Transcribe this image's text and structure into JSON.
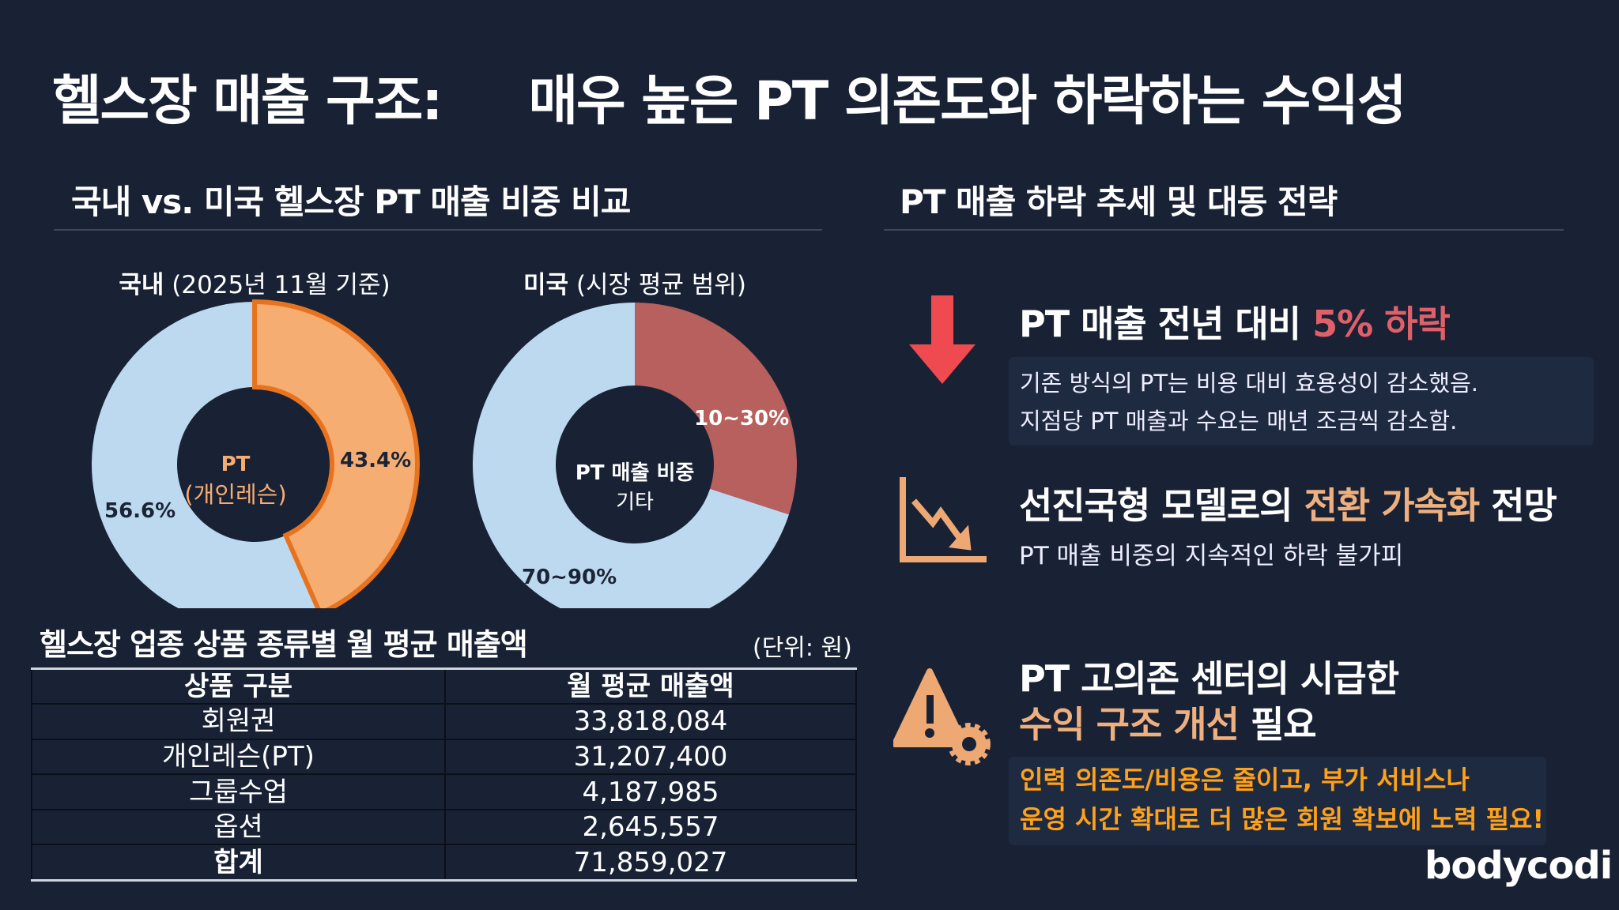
{
  "title": {
    "part1": "헬스장 매출 구조:",
    "part2": "매우 높은 PT 의존도와 하락하는 수익성"
  },
  "left": {
    "heading": "국내 vs. 미국 헬스장 PT 매출 비중 비교",
    "domestic": {
      "label_bold": "국내",
      "label_rest": "(2025년 11월 기준)",
      "center_line1": "PT",
      "center_line2": "(개인레슨)",
      "pt_value": "43.4%",
      "other_value": "56.6%"
    },
    "us": {
      "label_bold": "미국",
      "label_rest": "(시장 평균 범위)",
      "center_line1": "PT 매출 비중",
      "center_line2": "기타",
      "pt_value": "10~30%",
      "other_value": "70~90%"
    },
    "table": {
      "title": "헬스장 업종 상품 종류별 월 평균 매출액",
      "unit": "(단위: 원)",
      "headers": [
        "상품 구분",
        "월 평균 매출액"
      ],
      "rows": [
        [
          "회원권",
          "33,818,084"
        ],
        [
          "개인레슨(PT)",
          "31,207,400"
        ],
        [
          "그룹수업",
          "4,187,985"
        ],
        [
          "옵션",
          "2,645,557"
        ],
        [
          "합계",
          "71,859,027"
        ]
      ]
    }
  },
  "right": {
    "heading": "PT 매출 하락 추세 및 대동 전략",
    "item1": {
      "icon": "down-arrow-icon",
      "title_pre": "PT 매출 전년 대비 ",
      "title_hl": "5% 하락",
      "line1": "기존 방식의 PT는 비용 대비 효용성이 감소했음.",
      "line2": "지점당 PT 매출과 수요는 매년 조금씩 감소함."
    },
    "item2": {
      "icon": "declining-chart-icon",
      "title_pre": "선진국형 모델로의 ",
      "title_hl": "전환 가속화",
      "title_post": " 전망",
      "sub": "PT 매출 비중의 지속적인 하락 불가피"
    },
    "item3": {
      "icon": "warning-gear-icon",
      "title_line1": "PT 고의존 센터의 시급한",
      "title_hl": "수익 구조 개선",
      "title_post": " 필요",
      "line1": "인력 의존도/비용은 줄이고, 부가 서비스나",
      "line2": "운영 시간 확대로 더 많은 회원 확보에 노력 필요!"
    }
  },
  "logo": "bodycodi",
  "chart_data": [
    {
      "type": "pie",
      "title": "국내 (2025년 11월 기준)",
      "categories": [
        "PT (개인레슨)",
        "기타"
      ],
      "values": [
        43.4,
        56.6
      ],
      "colors": [
        "#f6ad72",
        "#bcd9f0"
      ]
    },
    {
      "type": "pie",
      "title": "미국 (시장 평균 범위)",
      "categories": [
        "PT 매출 비중",
        "기타"
      ],
      "values": [
        30,
        70
      ],
      "labels": [
        "10~30%",
        "70~90%"
      ],
      "colors": [
        "#b8605d",
        "#bcd9f0"
      ]
    }
  ]
}
